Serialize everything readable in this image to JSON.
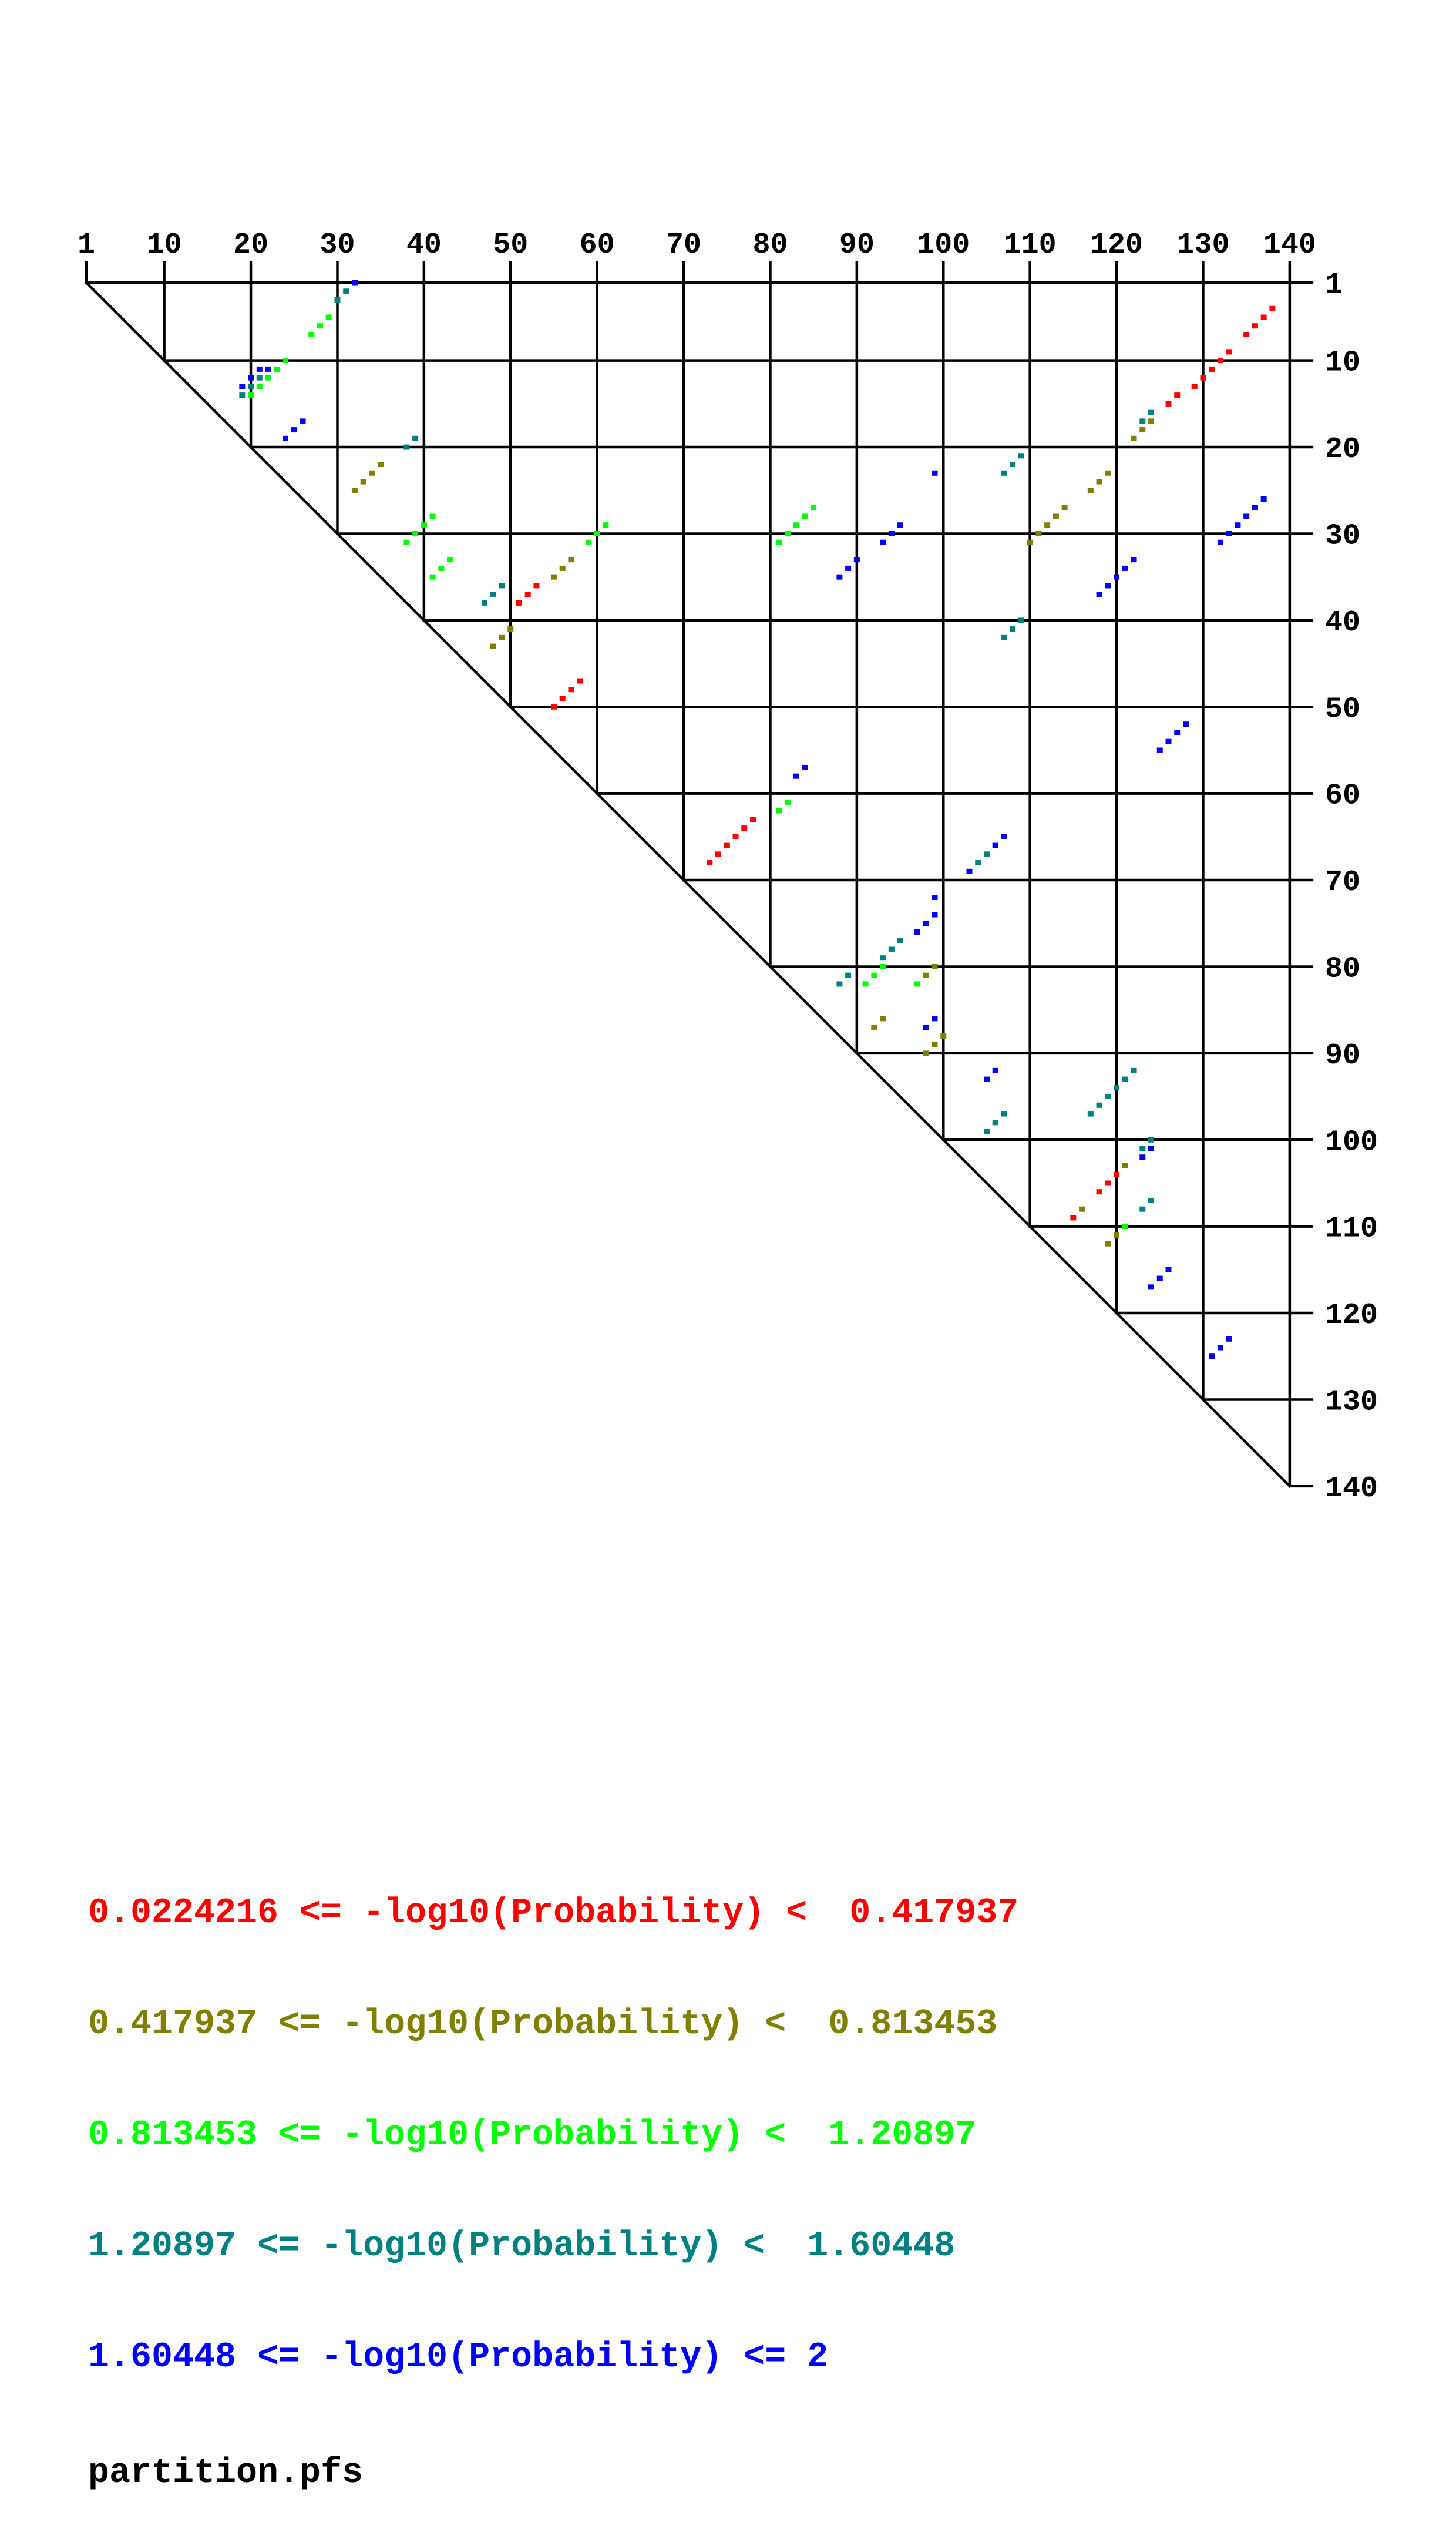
{
  "chart_data": {
    "type": "scatter",
    "x_ticks": [
      "1",
      "10",
      "20",
      "30",
      "40",
      "50",
      "60",
      "70",
      "80",
      "90",
      "100",
      "110",
      "120",
      "130",
      "140"
    ],
    "y_ticks": [
      "1",
      "10",
      "20",
      "30",
      "40",
      "50",
      "60",
      "70",
      "80",
      "90",
      "100",
      "110",
      "120",
      "130",
      "140"
    ],
    "xlim": [
      1,
      140
    ],
    "ylim": [
      1,
      140
    ],
    "grid": true,
    "legend_placement": "bottom-left",
    "legend": [
      {
        "text": "0.0224216 <= -log10(Probability) <  0.417937",
        "color": "#ff0000"
      },
      {
        "text": "0.417937 <= -log10(Probability) <  0.813453",
        "color": "#808000"
      },
      {
        "text": "0.813453 <= -log10(Probability) <  1.20897",
        "color": "#00ff00"
      },
      {
        "text": "1.20897 <= -log10(Probability) <  1.60448",
        "color": "#008080"
      },
      {
        "text": "1.60448 <= -log10(Probability) <= 2",
        "color": "#0000ff"
      }
    ],
    "series": [
      {
        "color": "#ff0000",
        "points": [
          [
            138,
            4
          ],
          [
            137,
            5
          ],
          [
            136,
            6
          ],
          [
            135,
            7
          ],
          [
            133,
            9
          ],
          [
            132,
            10
          ],
          [
            131,
            11
          ],
          [
            130,
            12
          ],
          [
            129,
            13
          ],
          [
            127,
            14
          ],
          [
            126,
            15
          ],
          [
            53,
            36
          ],
          [
            52,
            37
          ],
          [
            51,
            38
          ],
          [
            58,
            47
          ],
          [
            57,
            48
          ],
          [
            56,
            49
          ],
          [
            55,
            50
          ],
          [
            78,
            63
          ],
          [
            77,
            64
          ],
          [
            76,
            65
          ],
          [
            75,
            66
          ],
          [
            74,
            67
          ],
          [
            73,
            68
          ],
          [
            120,
            104
          ],
          [
            119,
            105
          ],
          [
            118,
            106
          ],
          [
            115,
            109
          ]
        ]
      },
      {
        "color": "#808000",
        "points": [
          [
            124,
            17
          ],
          [
            123,
            18
          ],
          [
            122,
            19
          ],
          [
            35,
            22
          ],
          [
            34,
            23
          ],
          [
            33,
            24
          ],
          [
            32,
            25
          ],
          [
            119,
            23
          ],
          [
            118,
            24
          ],
          [
            117,
            25
          ],
          [
            114,
            27
          ],
          [
            113,
            28
          ],
          [
            112,
            29
          ],
          [
            111,
            30
          ],
          [
            110,
            31
          ],
          [
            57,
            33
          ],
          [
            56,
            34
          ],
          [
            55,
            35
          ],
          [
            50,
            41
          ],
          [
            49,
            42
          ],
          [
            48,
            43
          ],
          [
            99,
            80
          ],
          [
            98,
            81
          ],
          [
            93,
            86
          ],
          [
            92,
            87
          ],
          [
            100,
            88
          ],
          [
            99,
            89
          ],
          [
            98,
            90
          ],
          [
            121,
            103
          ],
          [
            116,
            108
          ],
          [
            120,
            111
          ],
          [
            119,
            112
          ]
        ]
      },
      {
        "color": "#00ff00",
        "points": [
          [
            29,
            5
          ],
          [
            28,
            6
          ],
          [
            27,
            7
          ],
          [
            24,
            10
          ],
          [
            23,
            11
          ],
          [
            22,
            12
          ],
          [
            21,
            13
          ],
          [
            20,
            14
          ],
          [
            41,
            28
          ],
          [
            40,
            29
          ],
          [
            39,
            30
          ],
          [
            38,
            31
          ],
          [
            43,
            33
          ],
          [
            42,
            34
          ],
          [
            41,
            35
          ],
          [
            61,
            29
          ],
          [
            60,
            30
          ],
          [
            59,
            31
          ],
          [
            85,
            27
          ],
          [
            84,
            28
          ],
          [
            83,
            29
          ],
          [
            82,
            30
          ],
          [
            81,
            31
          ],
          [
            82,
            61
          ],
          [
            81,
            62
          ],
          [
            93,
            80
          ],
          [
            92,
            81
          ],
          [
            91,
            82
          ],
          [
            97,
            82
          ],
          [
            121,
            110
          ]
        ]
      },
      {
        "color": "#008080",
        "points": [
          [
            31,
            2
          ],
          [
            30,
            3
          ],
          [
            21,
            12
          ],
          [
            20,
            13
          ],
          [
            19,
            14
          ],
          [
            39,
            19
          ],
          [
            38,
            20
          ],
          [
            49,
            36
          ],
          [
            48,
            37
          ],
          [
            47,
            38
          ],
          [
            124,
            16
          ],
          [
            123,
            17
          ],
          [
            109,
            21
          ],
          [
            108,
            22
          ],
          [
            107,
            23
          ],
          [
            109,
            40
          ],
          [
            108,
            41
          ],
          [
            107,
            42
          ],
          [
            105,
            67
          ],
          [
            104,
            68
          ],
          [
            95,
            77
          ],
          [
            94,
            78
          ],
          [
            93,
            79
          ],
          [
            89,
            81
          ],
          [
            88,
            82
          ],
          [
            122,
            92
          ],
          [
            121,
            93
          ],
          [
            120,
            94
          ],
          [
            119,
            95
          ],
          [
            118,
            96
          ],
          [
            117,
            97
          ],
          [
            107,
            97
          ],
          [
            106,
            98
          ],
          [
            105,
            99
          ],
          [
            124,
            100
          ],
          [
            123,
            101
          ],
          [
            124,
            107
          ],
          [
            123,
            108
          ]
        ]
      },
      {
        "color": "#0000ff",
        "points": [
          [
            32,
            1
          ],
          [
            21,
            11
          ],
          [
            22,
            11
          ],
          [
            20,
            12
          ],
          [
            19,
            13
          ],
          [
            26,
            17
          ],
          [
            25,
            18
          ],
          [
            24,
            19
          ],
          [
            99,
            23
          ],
          [
            137,
            26
          ],
          [
            136,
            27
          ],
          [
            135,
            28
          ],
          [
            134,
            29
          ],
          [
            133,
            30
          ],
          [
            132,
            31
          ],
          [
            95,
            29
          ],
          [
            94,
            30
          ],
          [
            93,
            31
          ],
          [
            90,
            33
          ],
          [
            89,
            34
          ],
          [
            88,
            35
          ],
          [
            122,
            33
          ],
          [
            121,
            34
          ],
          [
            120,
            35
          ],
          [
            119,
            36
          ],
          [
            118,
            37
          ],
          [
            128,
            52
          ],
          [
            127,
            53
          ],
          [
            126,
            54
          ],
          [
            125,
            55
          ],
          [
            84,
            57
          ],
          [
            83,
            58
          ],
          [
            107,
            65
          ],
          [
            106,
            66
          ],
          [
            103,
            69
          ],
          [
            99,
            72
          ],
          [
            99,
            74
          ],
          [
            98,
            75
          ],
          [
            97,
            76
          ],
          [
            99,
            86
          ],
          [
            98,
            87
          ],
          [
            106,
            92
          ],
          [
            105,
            93
          ],
          [
            124,
            101
          ],
          [
            123,
            102
          ],
          [
            126,
            115
          ],
          [
            125,
            116
          ],
          [
            124,
            117
          ],
          [
            133,
            123
          ],
          [
            132,
            124
          ],
          [
            131,
            125
          ]
        ]
      }
    ]
  },
  "footer": {
    "file_name": "partition.pfs"
  }
}
